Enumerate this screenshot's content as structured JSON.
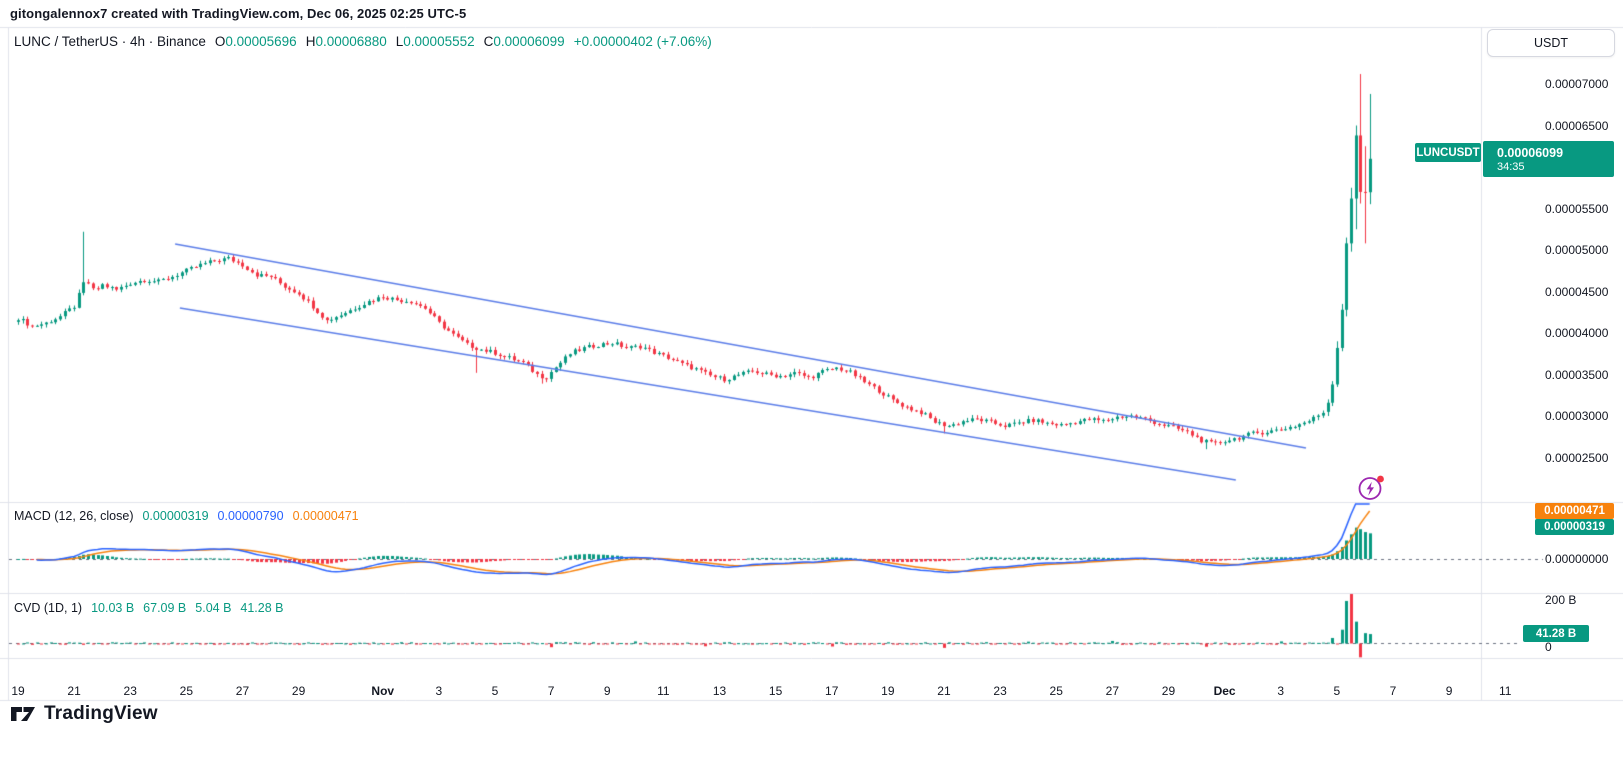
{
  "attribution": "gitongalennox7 created with TradingView.com, Dec 06, 2025 02:25 UTC-5",
  "symbol_header": {
    "title": "LUNC / TetherUS · 4h · Binance",
    "ohlc": [
      {
        "label": "O",
        "value": "0.00005696"
      },
      {
        "label": "H",
        "value": "0.00006880"
      },
      {
        "label": "L",
        "value": "0.00005552"
      },
      {
        "label": "C",
        "value": "0.00006099"
      }
    ],
    "change": "+0.00000402 (+7.06%)"
  },
  "price_axis": {
    "currency_button": "USDT",
    "ticks": [
      {
        "label": "0.00007000",
        "p": 7000
      },
      {
        "label": "0.00006500",
        "p": 6500
      },
      {
        "label": "0.00005500",
        "p": 5500
      },
      {
        "label": "0.00005000",
        "p": 5000
      },
      {
        "label": "0.00004500",
        "p": 4500
      },
      {
        "label": "0.00004000",
        "p": 4000
      },
      {
        "label": "0.00003500",
        "p": 3500
      },
      {
        "label": "0.00003000",
        "p": 3000
      },
      {
        "label": "0.00002500",
        "p": 2500
      }
    ],
    "symbol_badge": "LUNCUSDT",
    "price_badge": {
      "price": "0.00006099",
      "countdown": "34:35"
    }
  },
  "macd_panel": {
    "title": "MACD (12, 26, close)",
    "values": [
      {
        "value": "0.00000319",
        "color": "#089981"
      },
      {
        "value": "0.00000790",
        "color": "#2962ff"
      },
      {
        "value": "0.00000471",
        "color": "#f7820d"
      }
    ],
    "badge_orange": "0.00000471",
    "badge_teal": "0.00000319",
    "zero_label": "0.00000000"
  },
  "cvd_panel": {
    "title": "CVD (1D, 1)",
    "values": [
      "10.03 B",
      "67.09 B",
      "5.04 B",
      "41.28 B"
    ],
    "tick_200b": "200 B",
    "tick_zero": "0",
    "badge": "41.28 B"
  },
  "time_axis": {
    "labels": [
      {
        "label": "19",
        "d": 0
      },
      {
        "label": "21",
        "d": 2
      },
      {
        "label": "23",
        "d": 4
      },
      {
        "label": "25",
        "d": 6
      },
      {
        "label": "27",
        "d": 8
      },
      {
        "label": "29",
        "d": 10
      },
      {
        "label": "Nov",
        "d": 13,
        "bold": true
      },
      {
        "label": "3",
        "d": 15
      },
      {
        "label": "5",
        "d": 17
      },
      {
        "label": "7",
        "d": 19
      },
      {
        "label": "9",
        "d": 21
      },
      {
        "label": "11",
        "d": 23
      },
      {
        "label": "13",
        "d": 25
      },
      {
        "label": "15",
        "d": 27
      },
      {
        "label": "17",
        "d": 29
      },
      {
        "label": "19",
        "d": 31
      },
      {
        "label": "21",
        "d": 33
      },
      {
        "label": "23",
        "d": 35
      },
      {
        "label": "25",
        "d": 37
      },
      {
        "label": "27",
        "d": 39
      },
      {
        "label": "29",
        "d": 41
      },
      {
        "label": "Dec",
        "d": 43,
        "bold": true
      },
      {
        "label": "3",
        "d": 45
      },
      {
        "label": "5",
        "d": 47
      },
      {
        "label": "7",
        "d": 49
      },
      {
        "label": "9",
        "d": 51
      },
      {
        "label": "11",
        "d": 53
      }
    ]
  },
  "logo": {
    "mark": "17",
    "text": "TradingView"
  },
  "colors": {
    "up": "#089981",
    "down": "#f23645",
    "macd_line": "#2962ff",
    "signal_line": "#f7820d",
    "trendline": "#5b7de8",
    "separator": "#e0e3eb",
    "dashed": "#6b7280",
    "badge_orange": "#f7820d",
    "badge_teal": "#089981",
    "icon_purple": "#9c27b0",
    "dot_red": "#f23645"
  },
  "chart_data": {
    "type": "candlestick",
    "title": "LUNC / TetherUS",
    "interval": "4h",
    "exchange": "Binance",
    "quote": "USDT",
    "current_candle": {
      "open": 5.696e-05,
      "high": 6.88e-05,
      "low": 5.552e-05,
      "close": 6.099e-05,
      "change": 4.02e-06,
      "change_pct": 7.06
    },
    "y_axis_range_e8": [
      2200,
      7350
    ],
    "x_axis_days_from_oct19": [
      0,
      53
    ],
    "close_anchors_e8": [
      [
        0,
        4180
      ],
      [
        0.5,
        4080
      ],
      [
        1,
        4120
      ],
      [
        1.5,
        4200
      ],
      [
        2,
        4320
      ],
      [
        2.4,
        4650
      ],
      [
        2.7,
        4500
      ],
      [
        3,
        4580
      ],
      [
        3.5,
        4520
      ],
      [
        4,
        4600
      ],
      [
        4.5,
        4640
      ],
      [
        5,
        4620
      ],
      [
        5.5,
        4680
      ],
      [
        6,
        4750
      ],
      [
        6.5,
        4820
      ],
      [
        7,
        4870
      ],
      [
        7.5,
        4900
      ],
      [
        8,
        4820
      ],
      [
        8.5,
        4700
      ],
      [
        9,
        4680
      ],
      [
        9.5,
        4560
      ],
      [
        10,
        4480
      ],
      [
        10.5,
        4320
      ],
      [
        11,
        4150
      ],
      [
        11.5,
        4220
      ],
      [
        12,
        4300
      ],
      [
        12.5,
        4380
      ],
      [
        13,
        4440
      ],
      [
        13.5,
        4400
      ],
      [
        14,
        4380
      ],
      [
        14.5,
        4300
      ],
      [
        15,
        4120
      ],
      [
        15.5,
        3980
      ],
      [
        16,
        3860
      ],
      [
        16.5,
        3800
      ],
      [
        17,
        3760
      ],
      [
        17.5,
        3700
      ],
      [
        18,
        3640
      ],
      [
        18.5,
        3500
      ],
      [
        18.8,
        3460
      ],
      [
        19.2,
        3600
      ],
      [
        19.7,
        3760
      ],
      [
        20.2,
        3820
      ],
      [
        20.7,
        3860
      ],
      [
        21.2,
        3880
      ],
      [
        21.7,
        3820
      ],
      [
        22.2,
        3840
      ],
      [
        22.7,
        3760
      ],
      [
        23.2,
        3700
      ],
      [
        23.7,
        3620
      ],
      [
        24.2,
        3560
      ],
      [
        24.7,
        3480
      ],
      [
        25.2,
        3440
      ],
      [
        25.7,
        3500
      ],
      [
        26.2,
        3540
      ],
      [
        26.7,
        3500
      ],
      [
        27.2,
        3480
      ],
      [
        27.7,
        3520
      ],
      [
        28.2,
        3460
      ],
      [
        28.7,
        3540
      ],
      [
        29.2,
        3580
      ],
      [
        29.7,
        3520
      ],
      [
        30.2,
        3400
      ],
      [
        30.7,
        3300
      ],
      [
        31.2,
        3180
      ],
      [
        31.7,
        3100
      ],
      [
        32.2,
        3040
      ],
      [
        32.7,
        2920
      ],
      [
        33.2,
        2880
      ],
      [
        33.7,
        2940
      ],
      [
        34.2,
        2960
      ],
      [
        34.7,
        2920
      ],
      [
        35.2,
        2880
      ],
      [
        35.7,
        2920
      ],
      [
        36.2,
        2950
      ],
      [
        36.7,
        2910
      ],
      [
        37.2,
        2890
      ],
      [
        37.7,
        2930
      ],
      [
        38.2,
        2960
      ],
      [
        38.7,
        2940
      ],
      [
        39.2,
        2990
      ],
      [
        39.7,
        3000
      ],
      [
        40.2,
        2960
      ],
      [
        40.7,
        2900
      ],
      [
        41.2,
        2860
      ],
      [
        41.7,
        2800
      ],
      [
        42.2,
        2700
      ],
      [
        42.6,
        2660
      ],
      [
        43,
        2700
      ],
      [
        43.5,
        2740
      ],
      [
        44,
        2790
      ],
      [
        44.5,
        2810
      ],
      [
        45,
        2840
      ],
      [
        45.5,
        2880
      ],
      [
        46,
        2940
      ],
      [
        46.3,
        3000
      ],
      [
        46.5,
        3050
      ]
    ],
    "wick_events_e8": [
      [
        2.3,
        5220,
        "h"
      ],
      [
        16.3,
        3520,
        "l"
      ],
      [
        18.7,
        3390,
        "l"
      ],
      [
        33.0,
        2790,
        "l"
      ],
      [
        42.4,
        2600,
        "l"
      ]
    ],
    "final_candles_e8": [
      [
        46.67,
        3050,
        3200,
        3000,
        3160
      ],
      [
        46.83,
        3160,
        3420,
        3120,
        3380
      ],
      [
        47.0,
        3380,
        3900,
        3350,
        3820
      ],
      [
        47.17,
        3820,
        4350,
        3780,
        4280
      ],
      [
        47.33,
        4280,
        5150,
        4200,
        5080
      ],
      [
        47.5,
        5080,
        5750,
        4980,
        5620
      ],
      [
        47.67,
        5620,
        6500,
        5250,
        6380
      ],
      [
        47.83,
        6380,
        7120,
        5560,
        5700
      ],
      [
        48.0,
        5700,
        6250,
        5080,
        5696
      ],
      [
        48.17,
        5696,
        6880,
        5552,
        6099
      ]
    ],
    "trendlines": [
      {
        "name": "upper-channel-line",
        "d1": 5.6,
        "p1": 5072,
        "d2": 45.9,
        "p2": 2614
      },
      {
        "name": "lower-channel-line",
        "d1": 5.77,
        "p1": 4301,
        "d2": 43.4,
        "p2": 2229
      }
    ],
    "macd": {
      "fast": 12,
      "slow": 26,
      "signal": 9,
      "last_hist_e8": 319,
      "last_macd_e8": 790,
      "last_signal_e8": 471
    },
    "cvd": {
      "anchor": "1D",
      "period": 1,
      "values_B": [
        10.03,
        67.09,
        5.04,
        41.28
      ],
      "axis_max_B": 200
    },
    "cvd_bars_B": [
      [
        19,
        -16,
        "r"
      ],
      [
        22,
        9,
        "g"
      ],
      [
        24.5,
        -12,
        "r"
      ],
      [
        29,
        -13,
        "r"
      ],
      [
        33,
        -19,
        "r"
      ],
      [
        36,
        8,
        "g"
      ],
      [
        39,
        11,
        "g"
      ],
      [
        42.3,
        -14,
        "r"
      ],
      [
        45,
        9,
        "g"
      ],
      [
        46.8,
        24,
        "g"
      ],
      [
        47.17,
        60,
        "g"
      ],
      [
        47.33,
        185,
        "g"
      ],
      [
        47.5,
        280,
        "r"
      ],
      [
        47.67,
        95,
        "g"
      ],
      [
        47.83,
        -60,
        "r"
      ],
      [
        48.0,
        45,
        "g"
      ],
      [
        48.17,
        41,
        "g"
      ]
    ]
  }
}
